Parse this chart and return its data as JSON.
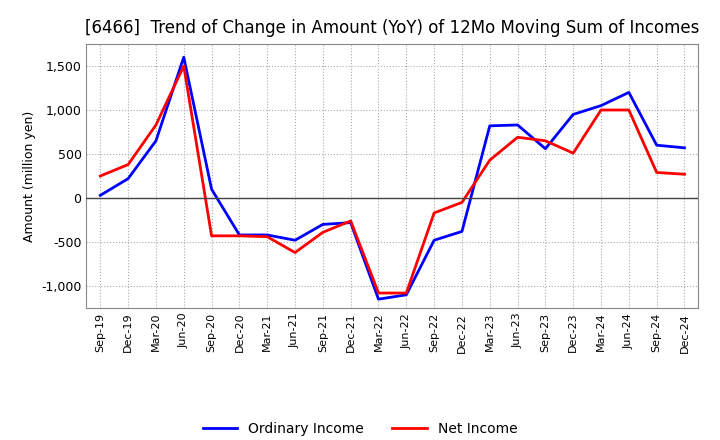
{
  "title": "[6466]  Trend of Change in Amount (YoY) of 12Mo Moving Sum of Incomes",
  "ylabel": "Amount (million yen)",
  "ylim": [
    -1250,
    1750
  ],
  "yticks": [
    -1000,
    -500,
    0,
    500,
    1000,
    1500
  ],
  "x_labels": [
    "Sep-19",
    "Dec-19",
    "Mar-20",
    "Jun-20",
    "Sep-20",
    "Dec-20",
    "Mar-21",
    "Jun-21",
    "Sep-21",
    "Dec-21",
    "Mar-22",
    "Jun-22",
    "Sep-22",
    "Dec-22",
    "Mar-23",
    "Jun-23",
    "Sep-23",
    "Dec-23",
    "Mar-24",
    "Jun-24",
    "Sep-24",
    "Dec-24"
  ],
  "ordinary_income": [
    30,
    220,
    650,
    1600,
    100,
    -420,
    -420,
    -480,
    -300,
    -280,
    -1150,
    -1100,
    -480,
    -380,
    820,
    830,
    560,
    950,
    1050,
    1200,
    600,
    570
  ],
  "net_income": [
    250,
    380,
    830,
    1500,
    -430,
    -430,
    -440,
    -620,
    -390,
    -260,
    -1080,
    -1080,
    -170,
    -50,
    430,
    690,
    650,
    510,
    1000,
    1000,
    290,
    270
  ],
  "ordinary_color": "#0000FF",
  "net_color": "#FF0000",
  "background_color": "#FFFFFF",
  "grid_color": "#AAAAAA",
  "title_fontsize": 12,
  "legend_labels": [
    "Ordinary Income",
    "Net Income"
  ]
}
